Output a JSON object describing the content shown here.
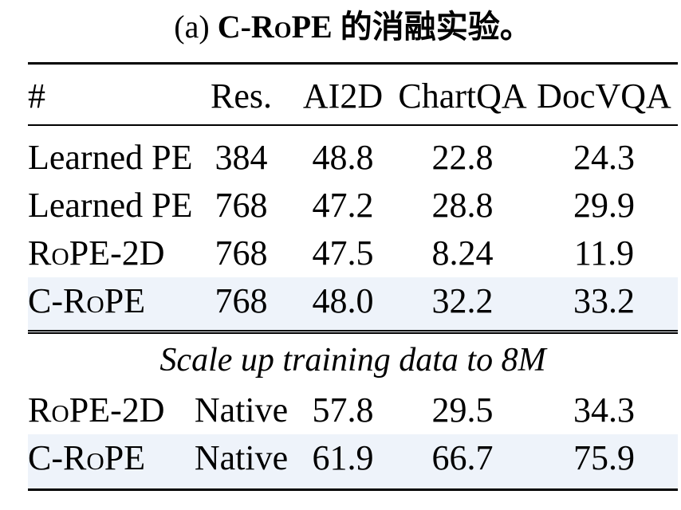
{
  "caption": {
    "prefix": "(a) ",
    "title": "C-RoPE 的消融实验。"
  },
  "table": {
    "columns": [
      "#",
      "Res.",
      "AI2D",
      "ChartQA",
      "DocVQA"
    ],
    "rows": [
      {
        "method": "Learned PE",
        "smallcaps": false,
        "highlight": false,
        "values": [
          "384",
          "48.8",
          "22.8",
          "24.3"
        ]
      },
      {
        "method": "Learned PE",
        "smallcaps": false,
        "highlight": false,
        "values": [
          "768",
          "47.2",
          "28.8",
          "29.9"
        ]
      },
      {
        "method": "RoPE-2D",
        "smallcaps": true,
        "highlight": false,
        "values": [
          "768",
          "47.5",
          "8.24",
          "11.9"
        ]
      },
      {
        "method": "C-RoPE",
        "smallcaps": true,
        "highlight": true,
        "values": [
          "768",
          "48.0",
          "32.2",
          "33.2"
        ]
      }
    ],
    "section_note": "Scale up training data to 8M",
    "rows2": [
      {
        "method": "RoPE-2D",
        "smallcaps": true,
        "highlight": false,
        "values": [
          "Native",
          "57.8",
          "29.5",
          "34.3"
        ]
      },
      {
        "method": "C-RoPE",
        "smallcaps": true,
        "highlight": true,
        "values": [
          "Native",
          "61.9",
          "66.7",
          "75.9"
        ]
      }
    ],
    "highlight_color": "#eef3fa"
  }
}
